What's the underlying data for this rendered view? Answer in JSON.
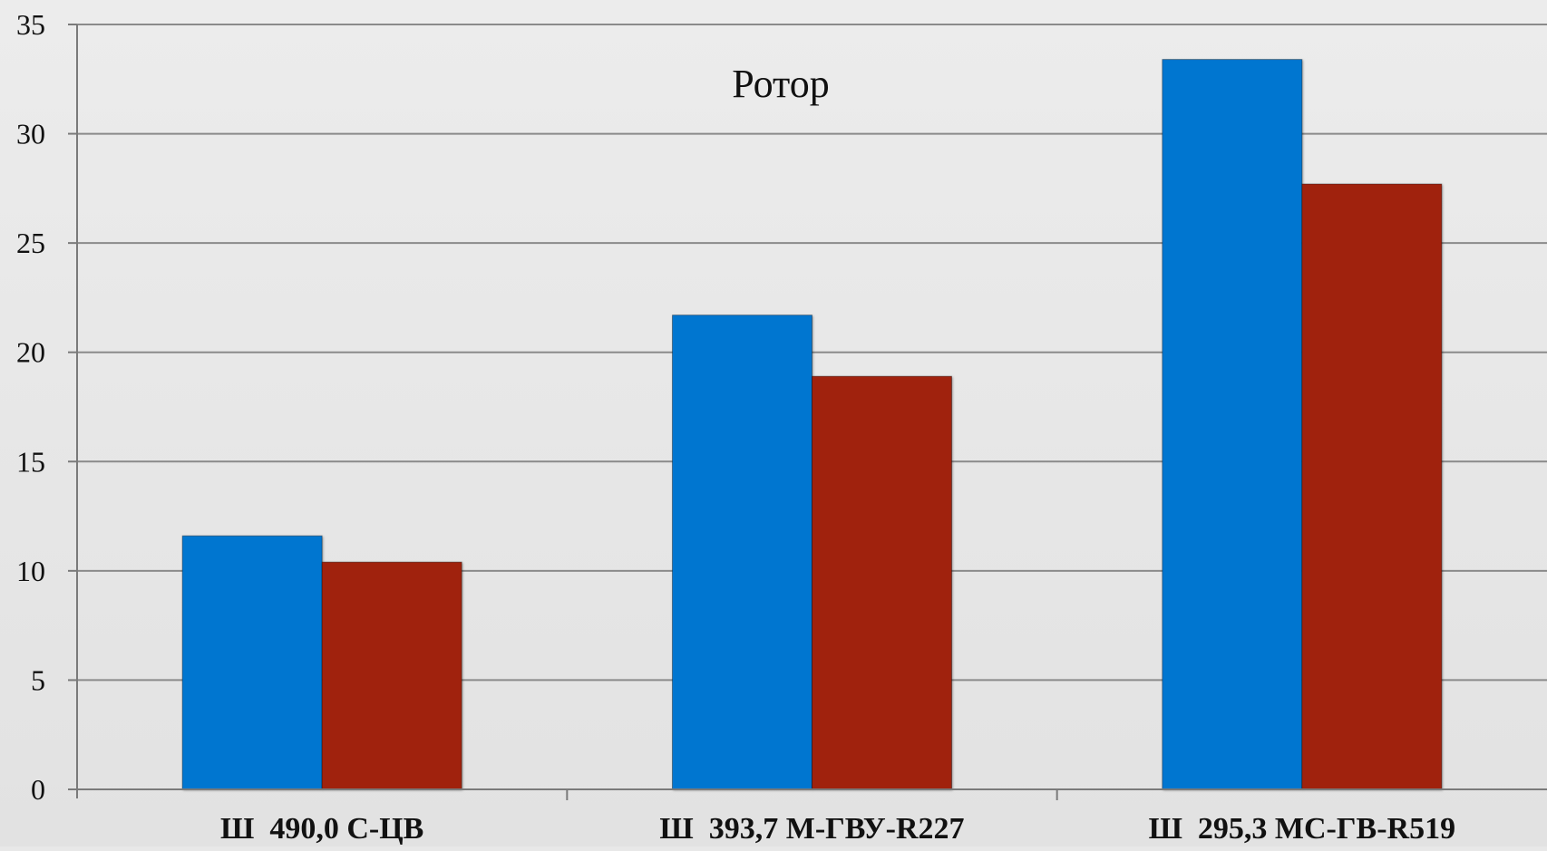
{
  "chart_data": {
    "type": "bar",
    "title": "Ротор",
    "categories": [
      "Ш  490,0 С-ЦВ",
      "Ш  393,7 М-ГВУ-R227",
      "Ш  295,3 МС-ГВ-R519"
    ],
    "series": [
      {
        "values": [
          11.6,
          21.7,
          33.4
        ],
        "color": "#0676d0"
      },
      {
        "values": [
          10.4,
          18.9,
          27.7
        ],
        "color": "#a0240e"
      }
    ],
    "ylim": [
      0,
      35
    ],
    "yticks": [
      0,
      5,
      10,
      15,
      20,
      25,
      30,
      35
    ],
    "grid": true,
    "legend": "none",
    "xlabel": "",
    "ylabel": ""
  }
}
